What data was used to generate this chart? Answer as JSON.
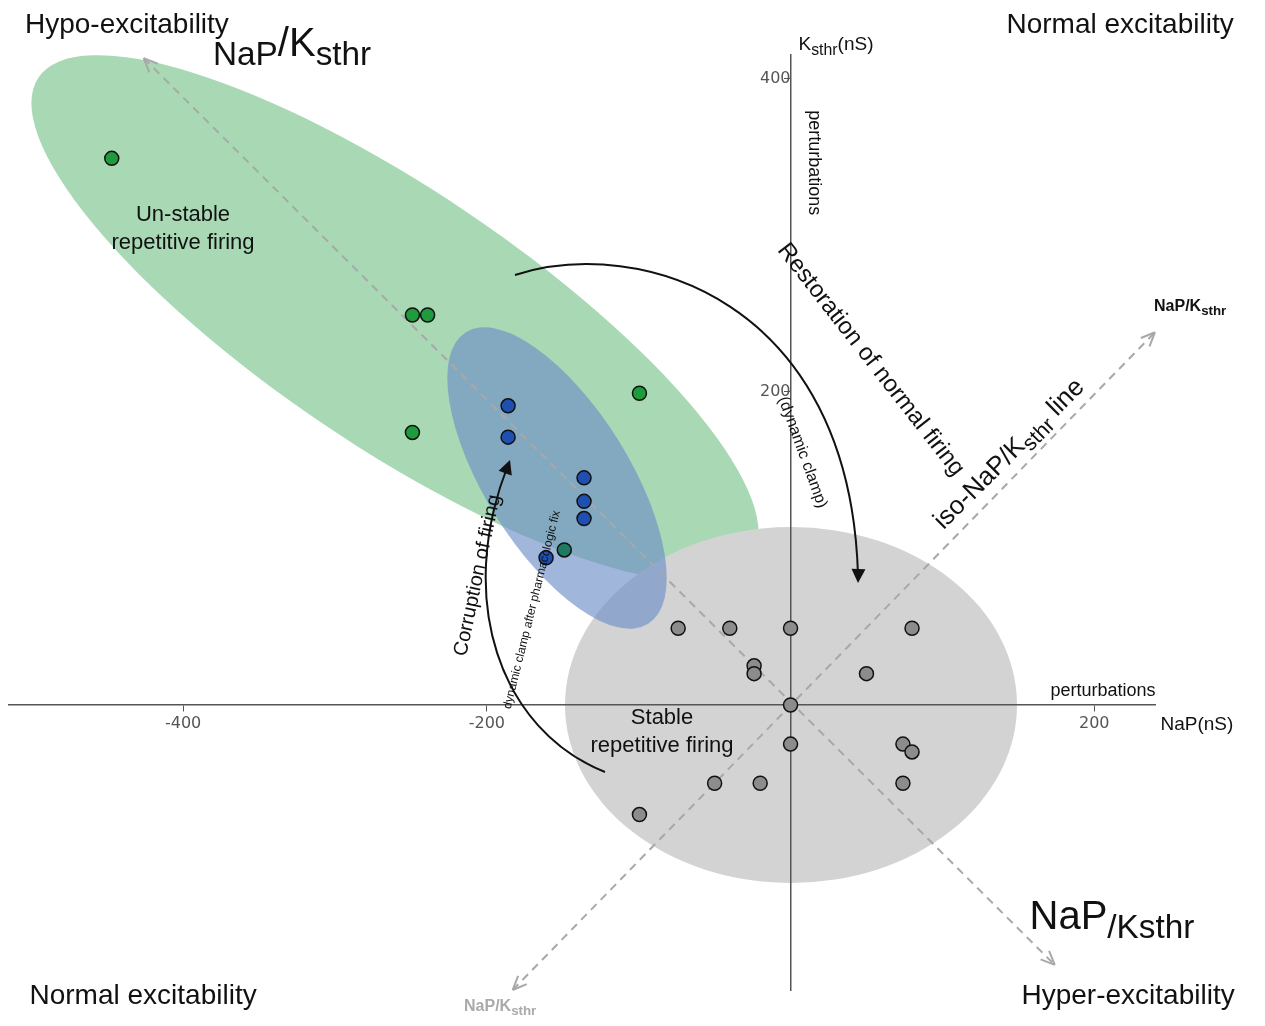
{
  "chart_data": {
    "type": "scatter",
    "xlabel": "NaP(nS)",
    "ylabel": "K$_{sthr}$(nS)",
    "xlim": [
      -515,
      240
    ],
    "ylim": [
      -182,
      415
    ],
    "xticks": [
      -400,
      -200,
      200
    ],
    "yticks": [
      200,
      400
    ],
    "grid": false,
    "legend": false,
    "marker": "circle",
    "series": [
      {
        "type": "line",
        "x": [
          -183,
          240
        ],
        "values": [
          -182,
          238
        ],
        "color": "#a8a8a8",
        "line_style": "dashed",
        "marker": "none"
      },
      {
        "type": "line",
        "x": [
          -426,
          174
        ],
        "values": [
          413,
          -166
        ],
        "color": "#a8a8a8",
        "line_style": "dashed",
        "marker": "none"
      },
      {
        "color": "#1f9a3c",
        "x": [
          -447,
          -249,
          -239,
          -99.5,
          -249
        ],
        "values": [
          349,
          249,
          249,
          199,
          174
        ]
      },
      {
        "color": "#1f7a62",
        "x": [
          -149
        ],
        "values": [
          99
        ]
      },
      {
        "color": "#1f4fb0",
        "x": [
          -186,
          -186,
          -136,
          -136,
          -136,
          -161
        ],
        "values": [
          191,
          171,
          145,
          130,
          119,
          94
        ]
      },
      {
        "color": "#8c8c8c",
        "x": [
          -74,
          -40,
          0,
          80,
          -24,
          -24,
          50,
          0,
          0,
          74,
          80,
          -50,
          -20,
          74,
          -99.5
        ],
        "values": [
          49,
          49,
          49,
          49,
          25,
          20,
          20,
          0,
          -25,
          -25,
          -30,
          -50,
          -50,
          -50,
          -70
        ]
      }
    ],
    "annotations": [
      "Hypo-excitability",
      "Normal excitability",
      "Normal excitability",
      "Hyper-excitability",
      "$_{NaP}$/K$_{sthr}$",
      "NaP$_{/K}$$_{sthr}$",
      "NaP/K$_{sthr}$",
      "NaP/K$_{sthr}$",
      "Un-stable\nrepetitive firing",
      "Stable\nrepetitive firing",
      "Restoration of normal firing",
      "(dynamic clamp)",
      "iso-NaP/K$_{sthr}$ line",
      "Corruption of firing",
      "dynamic clamp after pharmacologic fix",
      "perturbations",
      "perturbations"
    ]
  }
}
